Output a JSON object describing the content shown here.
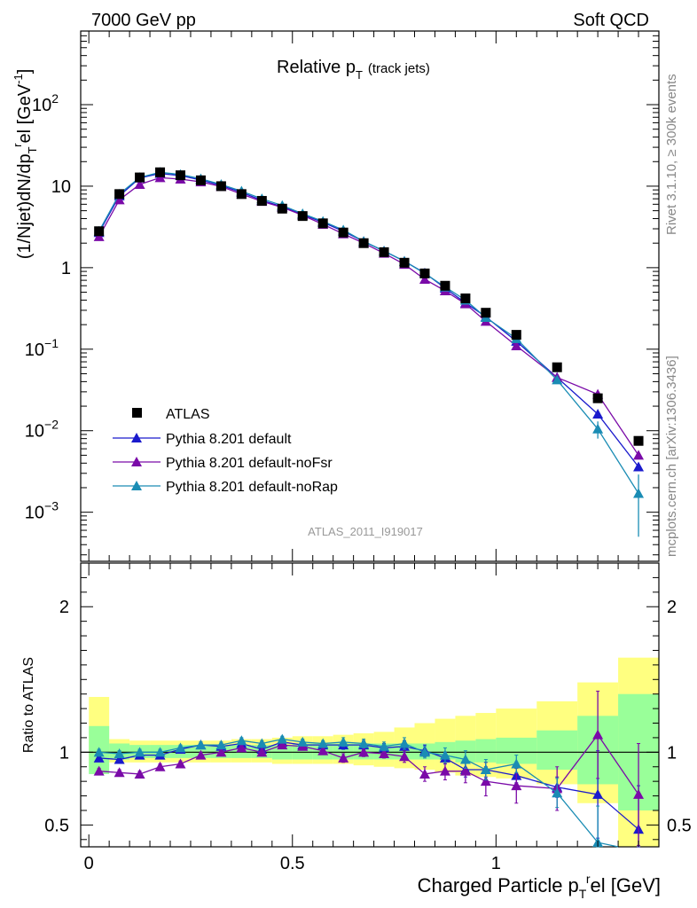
{
  "header": {
    "left": "7000 GeV pp",
    "right": "Soft QCD"
  },
  "side_labels": {
    "top": "Rivet 3.1.10, ≥ 300k events",
    "bottom": "mcplots.cern.ch [arXiv:1306.3436]"
  },
  "analysis_id": "ATLAS_2011_I919017",
  "main_plot": {
    "title_main": "Relative p",
    "title_sub": "T",
    "title_note": "(track jets)",
    "ylabel": "(1/Njet)dN/dp_T^rel [GeV^-1]",
    "yscale": "log",
    "ylim": [
      0.00025,
      800
    ]
  },
  "ratio_plot": {
    "ylabel": "Ratio to ATLAS",
    "ylim": [
      0.35,
      2.3
    ],
    "yticks": [
      "0.5",
      "1",
      "2"
    ]
  },
  "xaxis": {
    "label": "Charged Particle p_T^rel [GeV]",
    "xlim": [
      -0.02,
      1.4
    ],
    "ticks": [
      "0",
      "0.5",
      "1"
    ]
  },
  "legend": [
    "ATLAS",
    "Pythia 8.201 default",
    "Pythia 8.201 default-noFsr",
    "Pythia 8.201 default-noRap"
  ],
  "colors": {
    "atlas": "#000000",
    "default": "#1a1acc",
    "noFsr": "#7a0aa8",
    "noRap": "#1a8cb4",
    "band_yellow": "#ffff80",
    "band_green": "#99ff99"
  },
  "chart_data": {
    "type": "line",
    "x": [
      0.025,
      0.075,
      0.125,
      0.175,
      0.225,
      0.275,
      0.325,
      0.375,
      0.425,
      0.475,
      0.525,
      0.575,
      0.625,
      0.675,
      0.725,
      0.775,
      0.825,
      0.875,
      0.925,
      0.975,
      1.05,
      1.15,
      1.25,
      1.35
    ],
    "x_edges": [
      0.0,
      0.05,
      0.1,
      0.15,
      0.2,
      0.25,
      0.3,
      0.35,
      0.4,
      0.45,
      0.5,
      0.55,
      0.6,
      0.65,
      0.7,
      0.75,
      0.8,
      0.85,
      0.9,
      0.95,
      1.0,
      1.1,
      1.2,
      1.3,
      1.4
    ],
    "series": [
      {
        "name": "ATLAS",
        "values": [
          2.8,
          8.0,
          12.8,
          14.8,
          13.6,
          11.8,
          10.0,
          8.0,
          6.6,
          5.3,
          4.3,
          3.5,
          2.7,
          2.0,
          1.55,
          1.15,
          0.85,
          0.6,
          0.42,
          0.28,
          0.15,
          0.06,
          0.025,
          0.0075
        ]
      },
      {
        "name": "Pythia 8.201 default",
        "values": [
          2.7,
          7.6,
          12.6,
          14.3,
          13.5,
          11.9,
          10.2,
          8.4,
          6.7,
          5.6,
          4.5,
          3.6,
          2.8,
          2.1,
          1.6,
          1.2,
          0.86,
          0.56,
          0.37,
          0.25,
          0.125,
          0.045,
          0.016,
          0.0036
        ]
      },
      {
        "name": "Pythia 8.201 default-noFsr",
        "values": [
          2.4,
          6.8,
          10.5,
          12.7,
          12.2,
          11.3,
          9.9,
          8.0,
          6.5,
          5.5,
          4.4,
          3.4,
          2.6,
          2.0,
          1.5,
          1.1,
          0.72,
          0.52,
          0.36,
          0.22,
          0.11,
          0.045,
          0.028,
          0.005
        ]
      },
      {
        "name": "Pythia 8.201 default-noRap",
        "values": [
          2.8,
          8.0,
          12.8,
          14.8,
          13.9,
          12.3,
          10.5,
          8.7,
          7.0,
          5.8,
          4.6,
          3.7,
          2.9,
          2.1,
          1.6,
          1.2,
          0.85,
          0.58,
          0.4,
          0.245,
          0.135,
          0.042,
          0.0105,
          0.0017
        ]
      }
    ],
    "main_errors": {
      "noRap": [
        0,
        0,
        0,
        0,
        0,
        0,
        0,
        0,
        0,
        0,
        0,
        0,
        0,
        0,
        0,
        0,
        0,
        0,
        0,
        0,
        0,
        0,
        0.0025,
        0.0012
      ]
    },
    "ratio": {
      "default": [
        0.96,
        0.95,
        0.98,
        0.98,
        1.02,
        1.05,
        1.04,
        1.06,
        1.02,
        1.07,
        1.05,
        1.05,
        1.05,
        1.05,
        1.03,
        1.04,
        1.01,
        0.96,
        0.88,
        0.88,
        0.84,
        0.76,
        0.71,
        0.47
      ],
      "noFsr": [
        0.87,
        0.86,
        0.85,
        0.9,
        0.92,
        0.98,
        1.0,
        1.03,
        1.0,
        1.05,
        1.04,
        1.01,
        0.96,
        1.0,
        0.99,
        0.97,
        0.85,
        0.87,
        0.87,
        0.8,
        0.77,
        0.75,
        1.12,
        0.71
      ],
      "noRap": [
        1.0,
        0.99,
        1.0,
        1.0,
        1.03,
        1.05,
        1.05,
        1.08,
        1.06,
        1.09,
        1.07,
        1.06,
        1.07,
        1.06,
        1.04,
        1.06,
        1.0,
        0.98,
        0.95,
        0.88,
        0.92,
        0.72,
        0.38,
        0.22
      ]
    },
    "ratio_errors": {
      "default": [
        0.02,
        0.02,
        0.02,
        0.02,
        0.02,
        0.02,
        0.02,
        0.02,
        0.02,
        0.02,
        0.02,
        0.02,
        0.03,
        0.03,
        0.03,
        0.04,
        0.04,
        0.04,
        0.05,
        0.05,
        0.05,
        0.07,
        0.3,
        0.3
      ],
      "noFsr": [
        0.02,
        0.02,
        0.02,
        0.02,
        0.02,
        0.02,
        0.02,
        0.02,
        0.02,
        0.02,
        0.02,
        0.02,
        0.03,
        0.03,
        0.03,
        0.04,
        0.05,
        0.06,
        0.08,
        0.1,
        0.12,
        0.15,
        0.3,
        0.35
      ],
      "noRap": [
        0.02,
        0.02,
        0.02,
        0.02,
        0.02,
        0.02,
        0.02,
        0.02,
        0.02,
        0.02,
        0.02,
        0.02,
        0.03,
        0.03,
        0.03,
        0.04,
        0.04,
        0.05,
        0.06,
        0.07,
        0.06,
        0.1,
        0.25,
        0.3
      ]
    },
    "band_green": [
      [
        0.85,
        1.18
      ],
      [
        0.95,
        1.06
      ],
      [
        0.96,
        1.05
      ],
      [
        0.96,
        1.05
      ],
      [
        0.96,
        1.05
      ],
      [
        0.96,
        1.05
      ],
      [
        0.96,
        1.05
      ],
      [
        0.96,
        1.05
      ],
      [
        0.96,
        1.05
      ],
      [
        0.95,
        1.05
      ],
      [
        0.95,
        1.06
      ],
      [
        0.95,
        1.06
      ],
      [
        0.95,
        1.06
      ],
      [
        0.95,
        1.06
      ],
      [
        0.95,
        1.06
      ],
      [
        0.95,
        1.06
      ],
      [
        0.95,
        1.06
      ],
      [
        0.95,
        1.07
      ],
      [
        0.93,
        1.08
      ],
      [
        0.93,
        1.09
      ],
      [
        0.92,
        1.1
      ],
      [
        0.88,
        1.15
      ],
      [
        0.78,
        1.25
      ],
      [
        0.6,
        1.4
      ]
    ],
    "band_yellow": [
      [
        0.9,
        1.38
      ],
      [
        0.93,
        1.09
      ],
      [
        0.93,
        1.08
      ],
      [
        0.93,
        1.08
      ],
      [
        0.93,
        1.08
      ],
      [
        0.93,
        1.08
      ],
      [
        0.93,
        1.08
      ],
      [
        0.93,
        1.09
      ],
      [
        0.93,
        1.09
      ],
      [
        0.92,
        1.1
      ],
      [
        0.92,
        1.11
      ],
      [
        0.92,
        1.11
      ],
      [
        0.92,
        1.12
      ],
      [
        0.91,
        1.13
      ],
      [
        0.9,
        1.14
      ],
      [
        0.89,
        1.17
      ],
      [
        0.88,
        1.2
      ],
      [
        0.86,
        1.23
      ],
      [
        0.84,
        1.25
      ],
      [
        0.83,
        1.27
      ],
      [
        0.82,
        1.3
      ],
      [
        0.78,
        1.35
      ],
      [
        0.65,
        1.48
      ],
      [
        0.35,
        1.65
      ]
    ]
  }
}
